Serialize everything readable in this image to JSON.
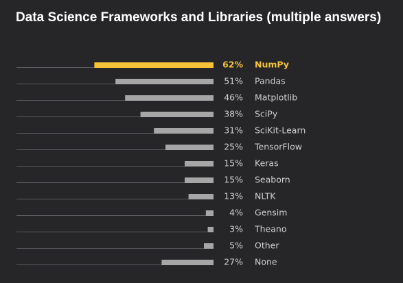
{
  "chart_data": {
    "type": "bar",
    "orientation": "horizontal",
    "title": "Data Science Frameworks and Libraries (multiple answers)",
    "categories": [
      "NumPy",
      "Pandas",
      "Matplotlib",
      "SciPy",
      "SciKit-Learn",
      "TensorFlow",
      "Keras",
      "Seaborn",
      "NLTK",
      "Gensim",
      "Theano",
      "Other",
      "None"
    ],
    "values": [
      62,
      51,
      46,
      38,
      31,
      25,
      15,
      15,
      13,
      4,
      3,
      5,
      27
    ],
    "value_labels": [
      "62%",
      "51%",
      "46%",
      "38%",
      "31%",
      "25%",
      "15%",
      "15%",
      "13%",
      "4%",
      "3%",
      "5%",
      "27%"
    ],
    "unit": "%",
    "highlight_index": 0,
    "xlim": [
      0,
      100
    ],
    "grid": false
  },
  "colors": {
    "background": "#262629",
    "title": "#ffffff",
    "highlight": "#f6c23a",
    "bar": "#a6a6a6",
    "text": "#d0d0d0",
    "baseline": "#5a5a5e"
  }
}
